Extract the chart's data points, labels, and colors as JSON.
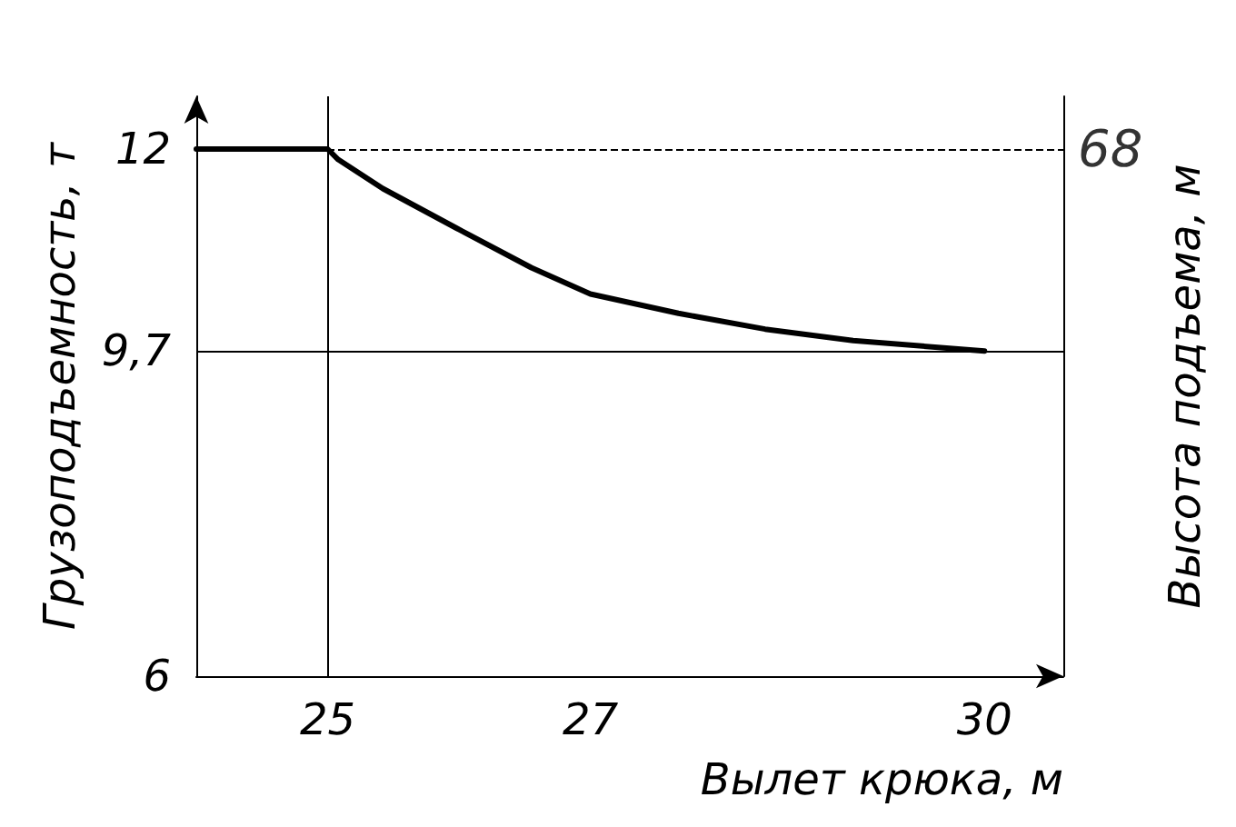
{
  "chart_data": {
    "type": "line",
    "xlabel": "Вылет крюка, м",
    "ylabel": "Грузоподъемность, т",
    "y2label": "Высота подъема, м",
    "x": [
      24,
      25,
      25.08,
      25.42,
      25.98,
      26.55,
      27,
      27.67,
      28.33,
      29,
      30
    ],
    "series": [
      {
        "color": "#000000",
        "values": [
          12,
          12,
          11.88,
          11.55,
          11.1,
          10.65,
          10.35,
          10.13,
          9.95,
          9.82,
          9.7
        ]
      }
    ],
    "xlim": [
      24,
      30.6
    ],
    "xticks": [
      25,
      27,
      30
    ],
    "ylim": [
      6,
      12.6
    ],
    "yticks": [
      6,
      {
        "value": 9.7,
        "label": "9,7"
      },
      12
    ],
    "ref_lines": [
      {
        "axis": "y",
        "value": 12,
        "line_style": "dashed"
      },
      {
        "axis": "y",
        "value": 9.7,
        "line_style": "solid"
      },
      {
        "axis": "x",
        "value": 25,
        "line_style": "solid"
      }
    ],
    "annotations": [
      {
        "text": "68",
        "x": 30.6,
        "y": 12
      }
    ],
    "grid": false,
    "marker": "none",
    "line_style": "solid"
  }
}
